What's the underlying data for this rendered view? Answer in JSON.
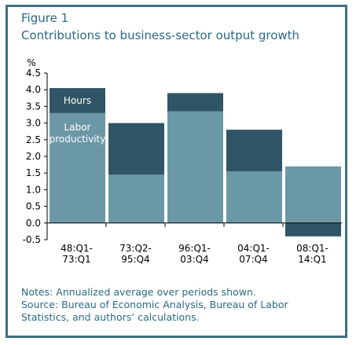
{
  "figure_label": "Figure 1",
  "title": "Contributions to business-sector output growth",
  "notes": [
    "Notes: Annualized average over periods shown.",
    "Source: Bureau of Economic Analysis, Bureau of Labor",
    "Statistics, and authors’ calculations."
  ],
  "colors": {
    "frame": "#3f6e82",
    "text": "#2d6a86",
    "labor": "#6a98a6",
    "hours": "#2f5566"
  },
  "chart_data": {
    "type": "bar",
    "stacked": true,
    "ylabel": "%",
    "ylim": [
      -0.5,
      4.5
    ],
    "yticks": [
      "4.5",
      "4.0",
      "3.5",
      "3.0",
      "2.5",
      "2.0",
      "1.5",
      "1.0",
      "0.5",
      "0.0",
      "-0.5"
    ],
    "categories": [
      [
        "48:Q1-",
        "73:Q1"
      ],
      [
        "73:Q2-",
        "95:Q4"
      ],
      [
        "96:Q1-",
        "03:Q4"
      ],
      [
        "04:Q1-",
        "07:Q4"
      ],
      [
        "08:Q1-",
        "14:Q1"
      ]
    ],
    "series": [
      {
        "name": "Labor productivity",
        "label_lines": [
          "Labor",
          "productivity"
        ],
        "values": [
          3.3,
          1.45,
          3.35,
          1.55,
          1.7
        ]
      },
      {
        "name": "Hours",
        "label_lines": [
          "Hours"
        ],
        "values": [
          0.75,
          1.55,
          0.55,
          1.25,
          -0.4
        ]
      }
    ]
  }
}
